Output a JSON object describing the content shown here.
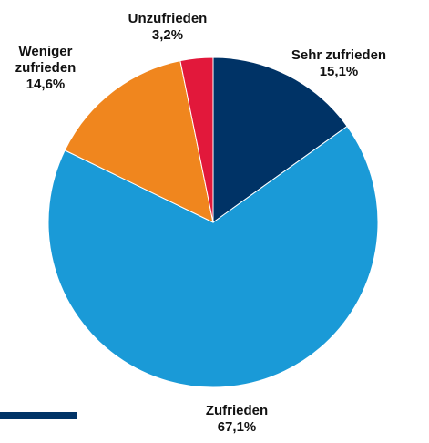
{
  "chart_data": {
    "type": "pie",
    "categories": [
      "Sehr zufrieden",
      "Zufrieden",
      "Weniger zufrieden",
      "Unzufrieden"
    ],
    "values": [
      15.1,
      67.1,
      14.6,
      3.2
    ],
    "value_labels": [
      "15,1%",
      "67,1%",
      "14,6%",
      "3,2%"
    ],
    "colors": [
      "#003366",
      "#1a9ad7",
      "#f0861e",
      "#e2183b"
    ]
  }
}
